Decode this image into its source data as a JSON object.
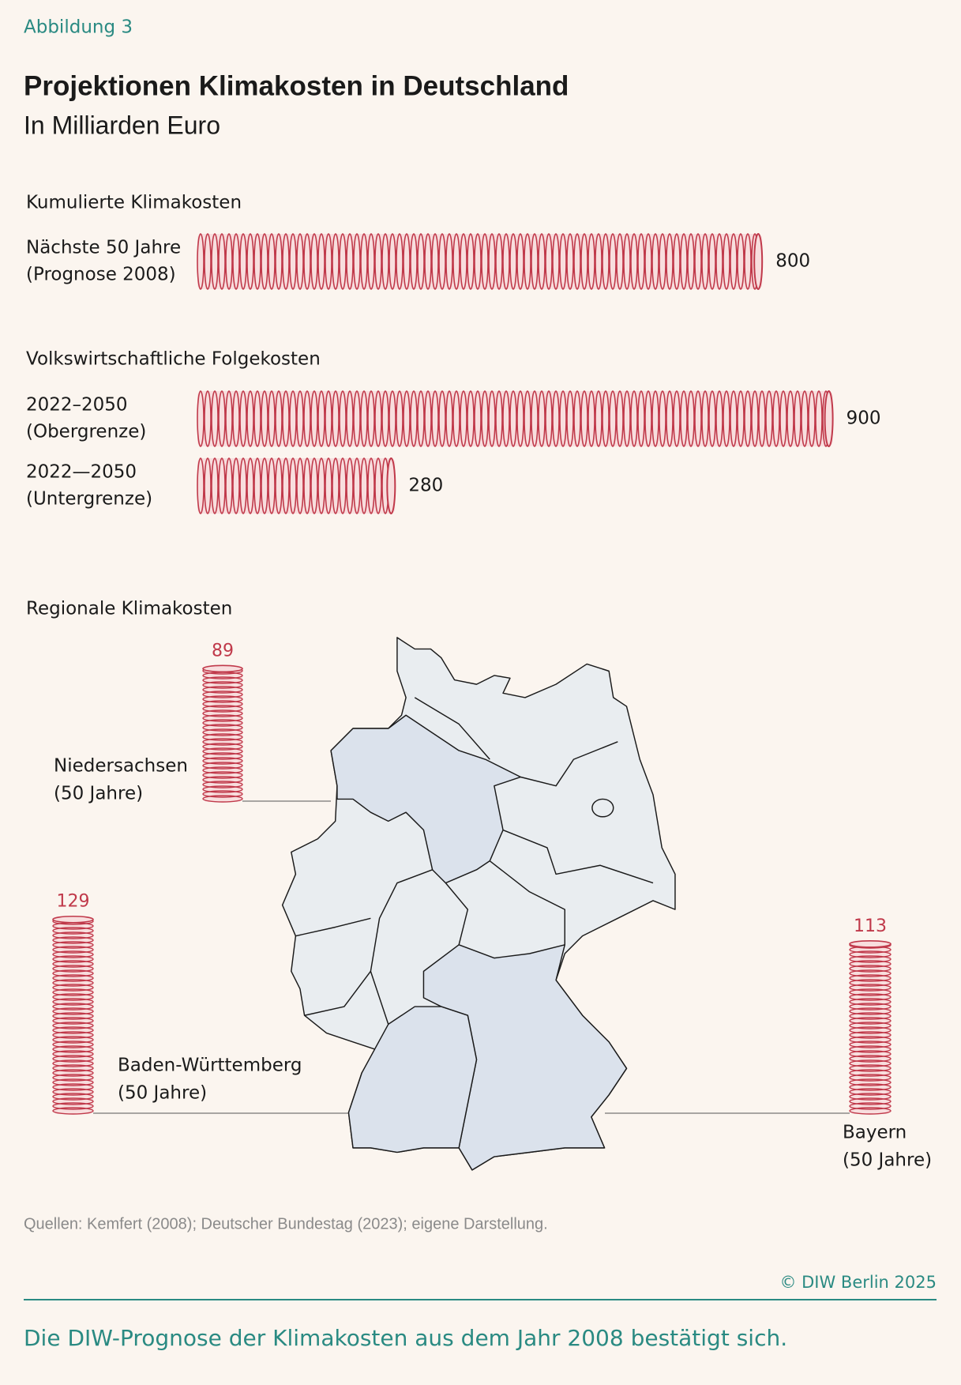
{
  "label": "Abbildung 3",
  "title": "Projektionen Klimakosten in Deutschland",
  "subtitle": "In Milliarden Euro",
  "chart_data": [
    {
      "type": "coin-bar",
      "title": "Kumulierte Klimakosten",
      "categories": [
        [
          "Nächste 50 Jahre",
          "(Prognose 2008)"
        ]
      ],
      "values": [
        800
      ],
      "color": "#c0394a"
    },
    {
      "type": "coin-bar",
      "title": "Volkswirtschaftliche Folgekosten",
      "categories": [
        [
          "2022–2050",
          "(Obergrenze)"
        ],
        [
          "2022—2050",
          "(Untergrenze)"
        ]
      ],
      "values": [
        900,
        280
      ],
      "color": "#c0394a"
    },
    {
      "type": "coin-stack",
      "title": "Regionale Klimakosten",
      "categories": [
        [
          "Niedersachsen",
          "(50 Jahre)"
        ],
        [
          "Baden-Württemberg",
          "(50 Jahre)"
        ],
        [
          "Bayern",
          "(50 Jahre)"
        ]
      ],
      "values": [
        89,
        129,
        113
      ],
      "color": "#c0394a"
    }
  ],
  "source": "Quellen: Kemfert (2008); Deutscher Bundestag (2023); eigene Darstellung.",
  "copyright": "© DIW Berlin 2025",
  "caption": "Die DIW-Prognose der Klimakosten aus dem Jahr 2008 bestätigt sich."
}
